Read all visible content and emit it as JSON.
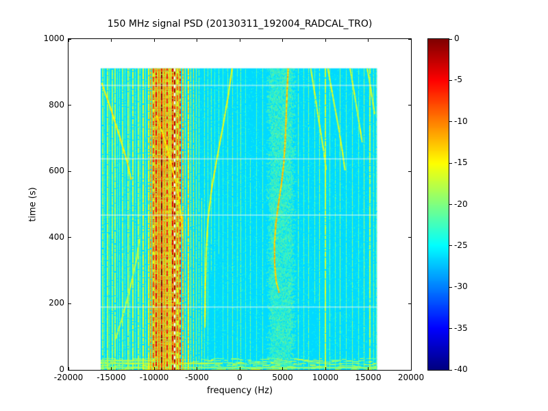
{
  "colors": {
    "plot_bg": "#ffffff",
    "axis_color": "#000000"
  },
  "chart_data": {
    "type": "heatmap",
    "title": "150 MHz signal PSD (20130311_192004_RADCAL_TRO)",
    "xlabel": "frequency (Hz)",
    "ylabel": "time (s)",
    "xlim": [
      -20000,
      20000
    ],
    "ylim": [
      0,
      1000
    ],
    "grid": false,
    "xticks": [
      -20000,
      -15000,
      -10000,
      -5000,
      0,
      5000,
      10000,
      15000,
      20000
    ],
    "xtick_labels": [
      "-20000",
      "-15000",
      "-10000",
      "-5000",
      "0",
      "5000",
      "10000",
      "15000",
      "20000"
    ],
    "yticks": [
      0,
      200,
      400,
      600,
      800,
      1000
    ],
    "ytick_labels": [
      "0",
      "200",
      "400",
      "600",
      "800",
      "1000"
    ],
    "colorbar": {
      "min": -40,
      "max": 0,
      "colormap": "jet",
      "ticks": [
        0,
        -5,
        -10,
        -15,
        -20,
        -25,
        -30,
        -35,
        -40
      ],
      "tick_labels": [
        "0",
        "-5",
        "-10",
        "-15",
        "-20",
        "-25",
        "-30",
        "-35",
        "-40"
      ]
    },
    "data_extent": {
      "freq": [
        -16250,
        16050
      ],
      "time": [
        0,
        912
      ]
    },
    "background_level_db": -26.5,
    "vertical_lines_format": [
      "freq_hz",
      "width_hz",
      "level_db",
      "t_start_s",
      "t_end_s"
    ],
    "vertical_lines": [
      [
        -16100,
        140,
        -19,
        0,
        912
      ],
      [
        -15850,
        100,
        -22,
        0,
        912
      ],
      [
        -15550,
        120,
        -18,
        0,
        912
      ],
      [
        -15250,
        100,
        -21,
        0,
        912
      ],
      [
        -14950,
        130,
        -19,
        0,
        912
      ],
      [
        -14650,
        140,
        -18,
        0,
        912
      ],
      [
        -14350,
        100,
        -21,
        0,
        912
      ],
      [
        -14050,
        110,
        -20,
        0,
        912
      ],
      [
        -13750,
        120,
        -19,
        0,
        912
      ],
      [
        -13450,
        100,
        -21,
        0,
        912
      ],
      [
        -13150,
        130,
        -18,
        0,
        912
      ],
      [
        -12850,
        100,
        -20,
        0,
        912
      ],
      [
        -12550,
        130,
        -17,
        0,
        912
      ],
      [
        -12250,
        100,
        -20,
        0,
        912
      ],
      [
        -11950,
        130,
        -18,
        0,
        912
      ],
      [
        -11650,
        100,
        -20,
        0,
        912
      ],
      [
        -11350,
        140,
        -16,
        0,
        912
      ],
      [
        -11050,
        110,
        -19,
        0,
        912
      ],
      [
        -10750,
        140,
        -15,
        0,
        912
      ],
      [
        -10450,
        150,
        -12,
        0,
        912
      ],
      [
        -10150,
        160,
        -8,
        0,
        912
      ],
      [
        -9830,
        160,
        -5,
        0,
        912
      ],
      [
        -9510,
        140,
        -10,
        0,
        912
      ],
      [
        -9190,
        170,
        -1,
        0,
        912
      ],
      [
        -8870,
        140,
        -11,
        0,
        912
      ],
      [
        -8550,
        160,
        -6,
        0,
        912
      ],
      [
        -8230,
        140,
        -13,
        0,
        912
      ],
      [
        -7910,
        170,
        -4,
        0,
        912
      ],
      [
        -7700,
        180,
        -2,
        0,
        912
      ],
      [
        -7380,
        140,
        -9,
        0,
        912
      ],
      [
        -7060,
        130,
        -7,
        0,
        912
      ],
      [
        -6740,
        120,
        -13,
        0,
        912
      ],
      [
        -6420,
        110,
        -16,
        0,
        912
      ],
      [
        -6100,
        120,
        -14,
        0,
        912
      ],
      [
        -5780,
        110,
        -17,
        0,
        912
      ],
      [
        -5460,
        110,
        -15,
        0,
        912
      ],
      [
        -5140,
        100,
        -18,
        0,
        912
      ],
      [
        -4820,
        100,
        -19,
        0,
        912
      ],
      [
        -4500,
        100,
        -18,
        0,
        520
      ],
      [
        -4150,
        90,
        -20,
        0,
        912
      ],
      [
        -3750,
        90,
        -21,
        0,
        912
      ],
      [
        -3350,
        90,
        -20,
        300,
        912
      ],
      [
        -2950,
        80,
        -22,
        0,
        912
      ],
      [
        -2500,
        80,
        -21,
        350,
        912
      ],
      [
        -2000,
        80,
        -22,
        0,
        912
      ],
      [
        -1450,
        80,
        -21,
        0,
        912
      ],
      [
        -900,
        90,
        -20,
        0,
        912
      ],
      [
        -350,
        80,
        -22,
        0,
        912
      ],
      [
        100,
        90,
        -20,
        0,
        912
      ],
      [
        600,
        80,
        -22,
        0,
        912
      ],
      [
        1200,
        80,
        -21,
        0,
        640
      ],
      [
        1900,
        80,
        -22,
        0,
        912
      ],
      [
        2600,
        80,
        -21,
        0,
        912
      ],
      [
        6800,
        90,
        -20,
        0,
        912
      ],
      [
        7400,
        80,
        -21,
        0,
        912
      ],
      [
        8000,
        90,
        -20,
        0,
        912
      ],
      [
        8700,
        80,
        -21,
        200,
        912
      ],
      [
        9300,
        100,
        -19,
        0,
        912
      ],
      [
        9900,
        130,
        -17,
        0,
        912
      ],
      [
        10500,
        90,
        -20,
        0,
        912
      ],
      [
        11100,
        90,
        -21,
        0,
        700
      ],
      [
        11700,
        100,
        -19,
        0,
        912
      ],
      [
        12400,
        90,
        -21,
        0,
        912
      ],
      [
        13100,
        100,
        -20,
        0,
        912
      ],
      [
        13800,
        90,
        -21,
        0,
        912
      ],
      [
        14500,
        110,
        -19,
        0,
        912
      ],
      [
        15100,
        120,
        -18,
        0,
        912
      ],
      [
        15600,
        100,
        -20,
        0,
        912
      ],
      [
        15950,
        100,
        -21,
        0,
        912
      ]
    ],
    "band_fills": [
      {
        "f": [
          -10250,
          -6950
        ],
        "db": -13,
        "style": "rows"
      },
      {
        "f": [
          3400,
          6250
        ],
        "db": -21,
        "style": "speckle"
      }
    ],
    "dashed_white_line_f": -7700,
    "chirp_traces": [
      {
        "db": -13,
        "points": [
          [
            5650,
            912
          ],
          [
            5520,
            840
          ],
          [
            5420,
            765
          ],
          [
            5300,
            690
          ],
          [
            5120,
            620
          ],
          [
            4850,
            560
          ],
          [
            4500,
            500
          ],
          [
            4200,
            440
          ],
          [
            4060,
            380
          ],
          [
            4080,
            320
          ],
          [
            4250,
            270
          ],
          [
            4600,
            235
          ]
        ]
      },
      {
        "db": -16,
        "points": [
          [
            -900,
            912
          ],
          [
            -1350,
            830
          ],
          [
            -1950,
            740
          ],
          [
            -2600,
            650
          ],
          [
            -3250,
            555
          ],
          [
            -3700,
            460
          ],
          [
            -3920,
            360
          ],
          [
            -4020,
            250
          ],
          [
            -4070,
            130
          ]
        ]
      },
      {
        "db": -15,
        "points": [
          [
            -16100,
            868
          ],
          [
            -15150,
            798
          ],
          [
            -14150,
            718
          ],
          [
            -13250,
            640
          ],
          [
            -12650,
            575
          ]
        ]
      },
      {
        "db": -14,
        "points": [
          [
            -9700,
            770
          ],
          [
            -8900,
            708
          ],
          [
            -8100,
            635
          ],
          [
            -7300,
            550
          ],
          [
            -6850,
            470
          ],
          [
            -6650,
            400
          ]
        ]
      },
      {
        "db": -17,
        "points": [
          [
            8300,
            912
          ],
          [
            8800,
            830
          ],
          [
            9300,
            745
          ],
          [
            9800,
            665
          ],
          [
            10100,
            605
          ]
        ]
      },
      {
        "db": -17,
        "points": [
          [
            10300,
            912
          ],
          [
            10900,
            825
          ],
          [
            11500,
            740
          ],
          [
            12000,
            660
          ],
          [
            12300,
            605
          ]
        ]
      },
      {
        "db": -17,
        "points": [
          [
            12900,
            912
          ],
          [
            13400,
            835
          ],
          [
            13900,
            755
          ],
          [
            14300,
            690
          ]
        ]
      },
      {
        "db": -17,
        "points": [
          [
            14900,
            912
          ],
          [
            15350,
            845
          ],
          [
            15750,
            775
          ]
        ]
      },
      {
        "db": -18,
        "points": [
          [
            -14500,
            95
          ],
          [
            -13600,
            170
          ],
          [
            -12800,
            250
          ],
          [
            -12100,
            330
          ],
          [
            -11700,
            400
          ]
        ]
      }
    ],
    "horizontal_lines": [
      {
        "t": 22,
        "f": [
          -16250,
          -2000
        ],
        "db": -17
      },
      {
        "t": 9,
        "f": [
          -16250,
          16050
        ],
        "db": -19
      },
      {
        "t": 30,
        "f": [
          -16250,
          -9000
        ],
        "db": -18
      }
    ],
    "dropout_rows_t": [
      192,
      470,
      640,
      862
    ],
    "burst_region_t": [
      0,
      35
    ]
  }
}
